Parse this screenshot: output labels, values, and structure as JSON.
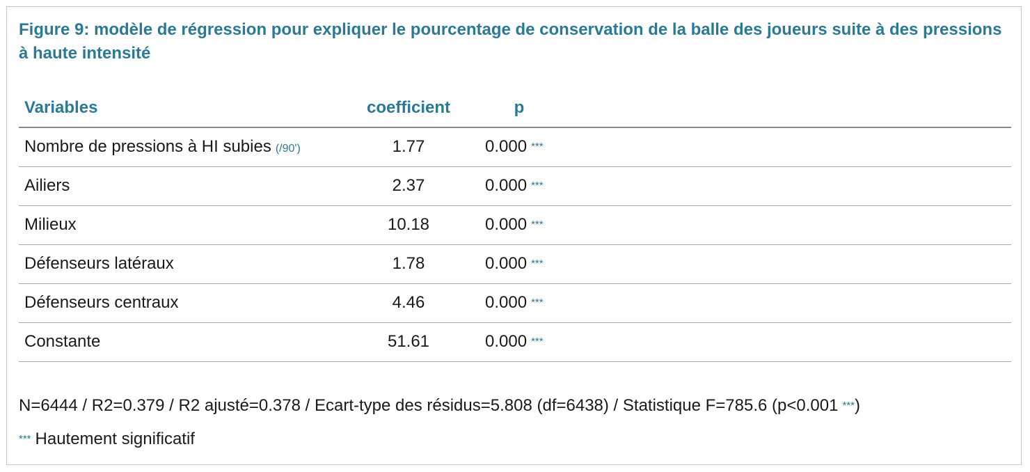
{
  "title": "Figure 9: modèle de régression pour expliquer le pourcentage de conservation de la balle des joueurs suite à des pressions à haute intensité",
  "colors": {
    "accent": "#2a7a96",
    "text": "#1a1a1a",
    "border": "#c8c8c8",
    "rule": "#a8a8a8"
  },
  "chart_data": {
    "type": "table",
    "title": "Figure 9: modèle de régression pour expliquer le pourcentage de conservation de la balle des joueurs suite à des pressions à haute intensité",
    "columns": [
      "Variables",
      "coefficient",
      "p"
    ],
    "rows": [
      {
        "variable": "Nombre de pressions à HI subies",
        "unit": "(/90')",
        "coefficient": "1.77",
        "p": "0.000",
        "stars": "***"
      },
      {
        "variable": "Ailiers",
        "unit": "",
        "coefficient": "2.37",
        "p": "0.000",
        "stars": "***"
      },
      {
        "variable": "Milieux",
        "unit": "",
        "coefficient": "10.18",
        "p": "0.000",
        "stars": "***"
      },
      {
        "variable": "Défenseurs latéraux",
        "unit": "",
        "coefficient": "1.78",
        "p": "0.000",
        "stars": "***"
      },
      {
        "variable": "Défenseurs centraux",
        "unit": "",
        "coefficient": "4.46",
        "p": "0.000",
        "stars": "***"
      },
      {
        "variable": "Constante",
        "unit": "",
        "coefficient": "51.61",
        "p": "0.000",
        "stars": "***"
      }
    ],
    "stats_text": "N=6444 / R2=0.379 / R2 ajusté=0.378 / Ecart-type des résidus=5.808 (df=6438) / Statistique F=785.6 (p<0.001",
    "stats_stars": "***",
    "stats_close": ")",
    "legend_stars": "***",
    "legend_text": "Hautement significatif"
  }
}
